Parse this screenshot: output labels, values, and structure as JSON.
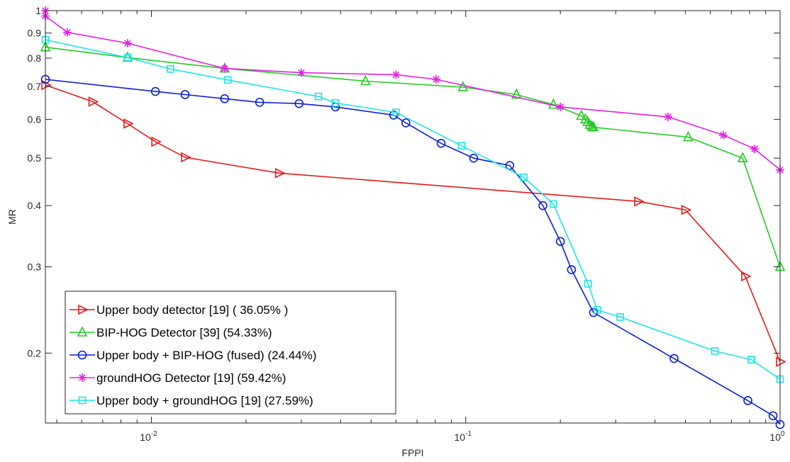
{
  "chart_data": {
    "type": "line",
    "xlabel": "FPPI",
    "ylabel": "MR",
    "x_scale": "log",
    "y_scale": "log",
    "xlim": [
      0.0046,
      1.0
    ],
    "ylim": [
      0.144,
      1.0
    ],
    "x_ticks": [
      {
        "value": 0.01,
        "base": "10",
        "exp": "-2"
      },
      {
        "value": 0.1,
        "base": "10",
        "exp": "-1"
      },
      {
        "value": 1,
        "base": "10",
        "exp": "0"
      }
    ],
    "y_ticks": [
      {
        "value": 0.2,
        "label": "0.2"
      },
      {
        "value": 0.3,
        "label": "0.3"
      },
      {
        "value": 0.4,
        "label": "0.4"
      },
      {
        "value": 0.5,
        "label": "0.5"
      },
      {
        "value": 0.6,
        "label": "0.6"
      },
      {
        "value": 0.7,
        "label": "0.7"
      },
      {
        "value": 0.8,
        "label": "0.8"
      },
      {
        "value": 0.9,
        "label": "0.9"
      },
      {
        "value": 1.0,
        "label": "1"
      }
    ],
    "grid": false,
    "legend_position": "bottom-left",
    "series": [
      {
        "name": "Upper body detector [19] ( 36.05% )",
        "color": "#e31a1c",
        "marker": "triangle-right",
        "points": [
          [
            0.0046,
            0.705
          ],
          [
            0.0065,
            0.652
          ],
          [
            0.0084,
            0.588
          ],
          [
            0.0103,
            0.54
          ],
          [
            0.0128,
            0.502
          ],
          [
            0.0255,
            0.466
          ],
          [
            0.354,
            0.408
          ],
          [
            0.5,
            0.392
          ],
          [
            0.775,
            0.287
          ],
          [
            1.0,
            0.192
          ]
        ]
      },
      {
        "name": "BIP-HOG Detector [39] (54.33%)",
        "color": "#22cc22",
        "marker": "triangle-up",
        "points": [
          [
            0.0046,
            0.842
          ],
          [
            0.0084,
            0.802
          ],
          [
            0.0171,
            0.762
          ],
          [
            0.048,
            0.718
          ],
          [
            0.098,
            0.698
          ],
          [
            0.145,
            0.674
          ],
          [
            0.19,
            0.643
          ],
          [
            0.233,
            0.61
          ],
          [
            0.24,
            0.6
          ],
          [
            0.244,
            0.593
          ],
          [
            0.248,
            0.585
          ],
          [
            0.252,
            0.58
          ],
          [
            0.255,
            0.578
          ],
          [
            0.51,
            0.552
          ],
          [
            0.76,
            0.5
          ],
          [
            1.0,
            0.3
          ]
        ]
      },
      {
        "name": "Upper body + BIP-HOG (fused) (24.44%)",
        "color": "#0b1ed8",
        "marker": "circle",
        "points": [
          [
            0.0046,
            0.724
          ],
          [
            0.0103,
            0.684
          ],
          [
            0.0128,
            0.674
          ],
          [
            0.0171,
            0.661
          ],
          [
            0.0221,
            0.65
          ],
          [
            0.0295,
            0.646
          ],
          [
            0.0385,
            0.636
          ],
          [
            0.059,
            0.612
          ],
          [
            0.0645,
            0.59
          ],
          [
            0.0835,
            0.536
          ],
          [
            0.106,
            0.5
          ],
          [
            0.138,
            0.483
          ],
          [
            0.176,
            0.4
          ],
          [
            0.2,
            0.338
          ],
          [
            0.217,
            0.296
          ],
          [
            0.255,
            0.242
          ],
          [
            0.46,
            0.195
          ],
          [
            0.79,
            0.16
          ],
          [
            0.95,
            0.149
          ],
          [
            1.0,
            0.143
          ]
        ]
      },
      {
        "name": "groundHOG Detector [19] (59.42%)",
        "color": "#e61ee6",
        "marker": "asterisk",
        "points": [
          [
            0.0046,
            1.0
          ],
          [
            0.0046,
            0.975
          ],
          [
            0.0054,
            0.903
          ],
          [
            0.0084,
            0.858
          ],
          [
            0.0171,
            0.762
          ],
          [
            0.03,
            0.747
          ],
          [
            0.06,
            0.74
          ],
          [
            0.0805,
            0.724
          ],
          [
            0.2,
            0.636
          ],
          [
            0.44,
            0.607
          ],
          [
            0.66,
            0.557
          ],
          [
            0.83,
            0.522
          ],
          [
            1.0,
            0.473
          ]
        ]
      },
      {
        "name": "Upper body + groundHOG [19] (27.59%)",
        "color": "#1ee6e6",
        "marker": "square",
        "points": [
          [
            0.0046,
            0.872
          ],
          [
            0.0084,
            0.802
          ],
          [
            0.0115,
            0.76
          ],
          [
            0.0175,
            0.722
          ],
          [
            0.034,
            0.668
          ],
          [
            0.0385,
            0.648
          ],
          [
            0.06,
            0.62
          ],
          [
            0.097,
            0.53
          ],
          [
            0.153,
            0.457
          ],
          [
            0.19,
            0.403
          ],
          [
            0.245,
            0.277
          ],
          [
            0.262,
            0.245
          ],
          [
            0.31,
            0.237
          ],
          [
            0.62,
            0.202
          ],
          [
            0.81,
            0.194
          ],
          [
            1.0,
            0.177
          ]
        ]
      }
    ]
  }
}
